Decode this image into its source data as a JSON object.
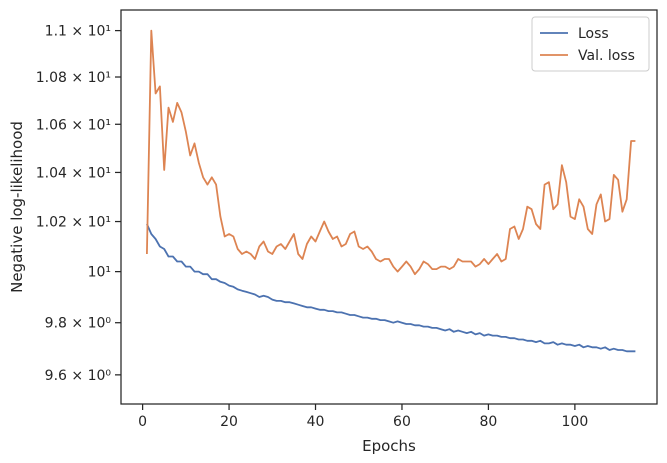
{
  "chart_data": {
    "type": "line",
    "xlabel": "Epochs",
    "ylabel": "Negative log-likelihood",
    "yscale": "log",
    "xlim": [
      -5,
      119
    ],
    "ylim": [
      9.49,
      11.09
    ],
    "xticks": [
      0,
      20,
      40,
      60,
      80,
      100
    ],
    "xtick_labels": [
      "0",
      "20",
      "40",
      "60",
      "80",
      "100"
    ],
    "yticks": [
      9.6,
      9.8,
      10.0,
      10.2,
      10.4,
      10.6,
      10.8,
      11.0
    ],
    "ytick_labels": [
      "9.6 × 10⁰",
      "9.8 × 10⁰",
      "10¹",
      "1.02 × 10¹",
      "1.04 × 10¹",
      "1.06 × 10¹",
      "1.08 × 10¹",
      "1.1 × 10¹"
    ],
    "grid": false,
    "legend": "top-right",
    "series": [
      {
        "name": "Loss",
        "color": "#4c72b0",
        "x": [
          1,
          2,
          3,
          4,
          5,
          6,
          7,
          8,
          9,
          10,
          11,
          12,
          13,
          14,
          15,
          16,
          17,
          18,
          19,
          20,
          21,
          22,
          23,
          24,
          25,
          26,
          27,
          28,
          29,
          30,
          31,
          32,
          33,
          34,
          35,
          36,
          37,
          38,
          39,
          40,
          41,
          42,
          43,
          44,
          45,
          46,
          47,
          48,
          49,
          50,
          51,
          52,
          53,
          54,
          55,
          56,
          57,
          58,
          59,
          60,
          61,
          62,
          63,
          64,
          65,
          66,
          67,
          68,
          69,
          70,
          71,
          72,
          73,
          74,
          75,
          76,
          77,
          78,
          79,
          80,
          81,
          82,
          83,
          84,
          85,
          86,
          87,
          88,
          89,
          90,
          91,
          92,
          93,
          94,
          95,
          96,
          97,
          98,
          99,
          100,
          101,
          102,
          103,
          104,
          105,
          106,
          107,
          108,
          109,
          110,
          111,
          112,
          113,
          114
        ],
        "y": [
          10.19,
          10.15,
          10.13,
          10.1,
          10.09,
          10.06,
          10.06,
          10.04,
          10.04,
          10.02,
          10.02,
          10.0,
          10.0,
          9.99,
          9.99,
          9.97,
          9.97,
          9.96,
          9.955,
          9.945,
          9.94,
          9.93,
          9.925,
          9.92,
          9.915,
          9.91,
          9.9,
          9.905,
          9.9,
          9.89,
          9.885,
          9.885,
          9.88,
          9.88,
          9.875,
          9.87,
          9.865,
          9.86,
          9.86,
          9.855,
          9.85,
          9.85,
          9.845,
          9.845,
          9.84,
          9.84,
          9.835,
          9.83,
          9.83,
          9.825,
          9.82,
          9.82,
          9.815,
          9.815,
          9.81,
          9.81,
          9.805,
          9.8,
          9.805,
          9.8,
          9.795,
          9.795,
          9.79,
          9.79,
          9.785,
          9.785,
          9.78,
          9.78,
          9.775,
          9.77,
          9.775,
          9.765,
          9.77,
          9.765,
          9.76,
          9.765,
          9.755,
          9.76,
          9.75,
          9.755,
          9.75,
          9.75,
          9.745,
          9.745,
          9.74,
          9.74,
          9.735,
          9.735,
          9.73,
          9.73,
          9.725,
          9.73,
          9.72,
          9.72,
          9.725,
          9.715,
          9.72,
          9.715,
          9.715,
          9.71,
          9.715,
          9.705,
          9.71,
          9.705,
          9.705,
          9.7,
          9.705,
          9.695,
          9.7,
          9.695,
          9.695,
          9.69,
          9.69,
          9.69
        ]
      },
      {
        "name": "Val. loss",
        "color": "#dd8452",
        "x": [
          1,
          2,
          3,
          4,
          5,
          6,
          7,
          8,
          9,
          10,
          11,
          12,
          13,
          14,
          15,
          16,
          17,
          18,
          19,
          20,
          21,
          22,
          23,
          24,
          25,
          26,
          27,
          28,
          29,
          30,
          31,
          32,
          33,
          34,
          35,
          36,
          37,
          38,
          39,
          40,
          41,
          42,
          43,
          44,
          45,
          46,
          47,
          48,
          49,
          50,
          51,
          52,
          53,
          54,
          55,
          56,
          57,
          58,
          59,
          60,
          61,
          62,
          63,
          64,
          65,
          66,
          67,
          68,
          69,
          70,
          71,
          72,
          73,
          74,
          75,
          76,
          77,
          78,
          79,
          80,
          81,
          82,
          83,
          84,
          85,
          86,
          87,
          88,
          89,
          90,
          91,
          92,
          93,
          94,
          95,
          96,
          97,
          98,
          99,
          100,
          101,
          102,
          103,
          104,
          105,
          106,
          107,
          108,
          109,
          110,
          111,
          112,
          113,
          114
        ],
        "y": [
          10.07,
          11.0,
          10.73,
          10.76,
          10.41,
          10.67,
          10.61,
          10.69,
          10.65,
          10.57,
          10.47,
          10.52,
          10.44,
          10.38,
          10.35,
          10.38,
          10.35,
          10.22,
          10.14,
          10.15,
          10.14,
          10.09,
          10.07,
          10.08,
          10.07,
          10.05,
          10.1,
          10.12,
          10.08,
          10.07,
          10.1,
          10.11,
          10.09,
          10.12,
          10.15,
          10.07,
          10.05,
          10.11,
          10.14,
          10.12,
          10.16,
          10.2,
          10.16,
          10.13,
          10.14,
          10.1,
          10.11,
          10.15,
          10.16,
          10.1,
          10.09,
          10.1,
          10.08,
          10.05,
          10.04,
          10.05,
          10.05,
          10.02,
          10.0,
          10.02,
          10.04,
          10.02,
          9.99,
          10.01,
          10.04,
          10.03,
          10.01,
          10.01,
          10.02,
          10.02,
          10.01,
          10.02,
          10.05,
          10.04,
          10.04,
          10.04,
          10.02,
          10.03,
          10.05,
          10.03,
          10.05,
          10.07,
          10.04,
          10.05,
          10.17,
          10.18,
          10.13,
          10.17,
          10.26,
          10.25,
          10.19,
          10.17,
          10.35,
          10.36,
          10.25,
          10.27,
          10.43,
          10.36,
          10.22,
          10.21,
          10.29,
          10.26,
          10.17,
          10.15,
          10.27,
          10.31,
          10.2,
          10.21,
          10.39,
          10.37,
          10.24,
          10.29,
          10.53,
          10.53
        ]
      }
    ]
  }
}
